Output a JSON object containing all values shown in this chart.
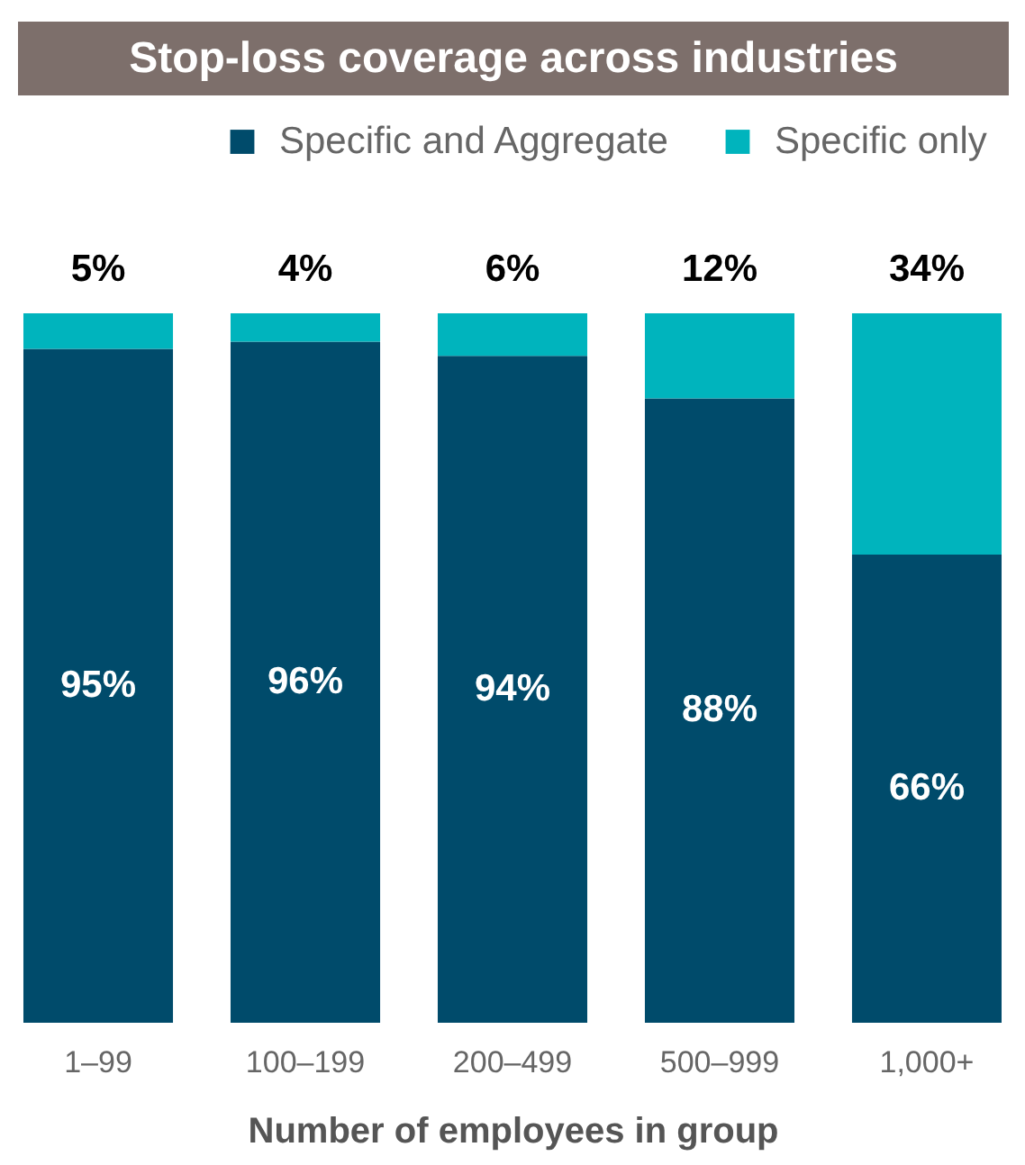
{
  "chart_data": {
    "type": "bar",
    "title": "Stop-loss coverage across industries",
    "xlabel": "Number of employees in group",
    "categories": [
      "1–99",
      "100–199",
      "200–499",
      "500–999",
      "1,000+"
    ],
    "series": [
      {
        "name": "Specific and Aggregate",
        "color": "#004b6b",
        "values": [
          95,
          96,
          94,
          88,
          66
        ],
        "value_labels": [
          "95%",
          "96%",
          "94%",
          "88%",
          "66%"
        ]
      },
      {
        "name": "Specific only",
        "color": "#00b4bd",
        "values": [
          5,
          4,
          6,
          12,
          34
        ],
        "value_labels": [
          "5%",
          "4%",
          "6%",
          "12%",
          "34%"
        ]
      }
    ],
    "stacked": true,
    "ylim": [
      0,
      100
    ],
    "tick_labels": "x",
    "legend": "top right"
  }
}
